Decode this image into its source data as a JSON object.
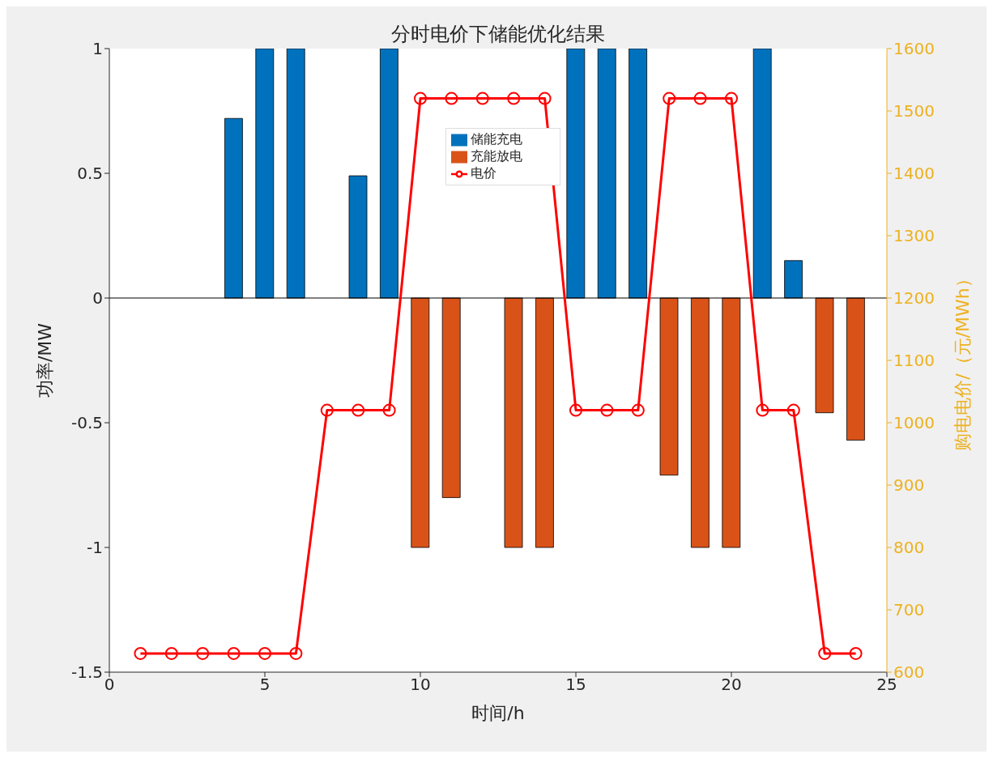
{
  "chart_data": {
    "type": "bar",
    "title": "分时电价下储能优化结果",
    "xlabel": "时间/h",
    "ylabel": "功率/MW",
    "y2label": "购电电价/（元/MWh）",
    "x": [
      1,
      2,
      3,
      4,
      5,
      6,
      7,
      8,
      9,
      10,
      11,
      12,
      13,
      14,
      15,
      16,
      17,
      18,
      19,
      20,
      21,
      22,
      23,
      24
    ],
    "series": [
      {
        "name": "储能充电",
        "color": "#0072bd",
        "values": [
          null,
          null,
          null,
          0.72,
          1,
          1,
          null,
          0.49,
          1,
          null,
          null,
          null,
          null,
          null,
          1,
          1,
          1,
          null,
          null,
          null,
          1,
          0.15,
          null,
          null
        ]
      },
      {
        "name": "充能放电",
        "color": "#d95319",
        "values": [
          null,
          null,
          null,
          null,
          null,
          null,
          null,
          null,
          null,
          -1,
          -0.8,
          null,
          -1,
          -1,
          null,
          null,
          null,
          -0.71,
          -1,
          -1,
          null,
          null,
          -0.46,
          -0.57
        ]
      },
      {
        "name": "电价",
        "type": "line",
        "axis": "y2",
        "color": "#ff0000",
        "values": [
          630,
          630,
          630,
          630,
          630,
          630,
          1020,
          1020,
          1020,
          1520,
          1520,
          1520,
          1520,
          1520,
          1020,
          1020,
          1020,
          1520,
          1520,
          1520,
          1020,
          1020,
          630,
          630
        ]
      }
    ],
    "stacked": true,
    "xlim": [
      0,
      25
    ],
    "xticks": [
      0,
      5,
      10,
      15,
      20,
      25
    ],
    "ylim": [
      -1.5,
      1
    ],
    "yticks": [
      -1.5,
      -1,
      -0.5,
      0,
      0.5,
      1
    ],
    "y2lim": [
      600,
      1600
    ],
    "y2ticks": [
      600,
      700,
      800,
      900,
      1000,
      1100,
      1200,
      1300,
      1400,
      1500,
      1600
    ],
    "ref_lines": [
      {
        "axis": "y",
        "value": 0,
        "color": "#000000"
      }
    ],
    "grid": false,
    "legend": "top",
    "marker": "circle",
    "line_style": "solid"
  }
}
